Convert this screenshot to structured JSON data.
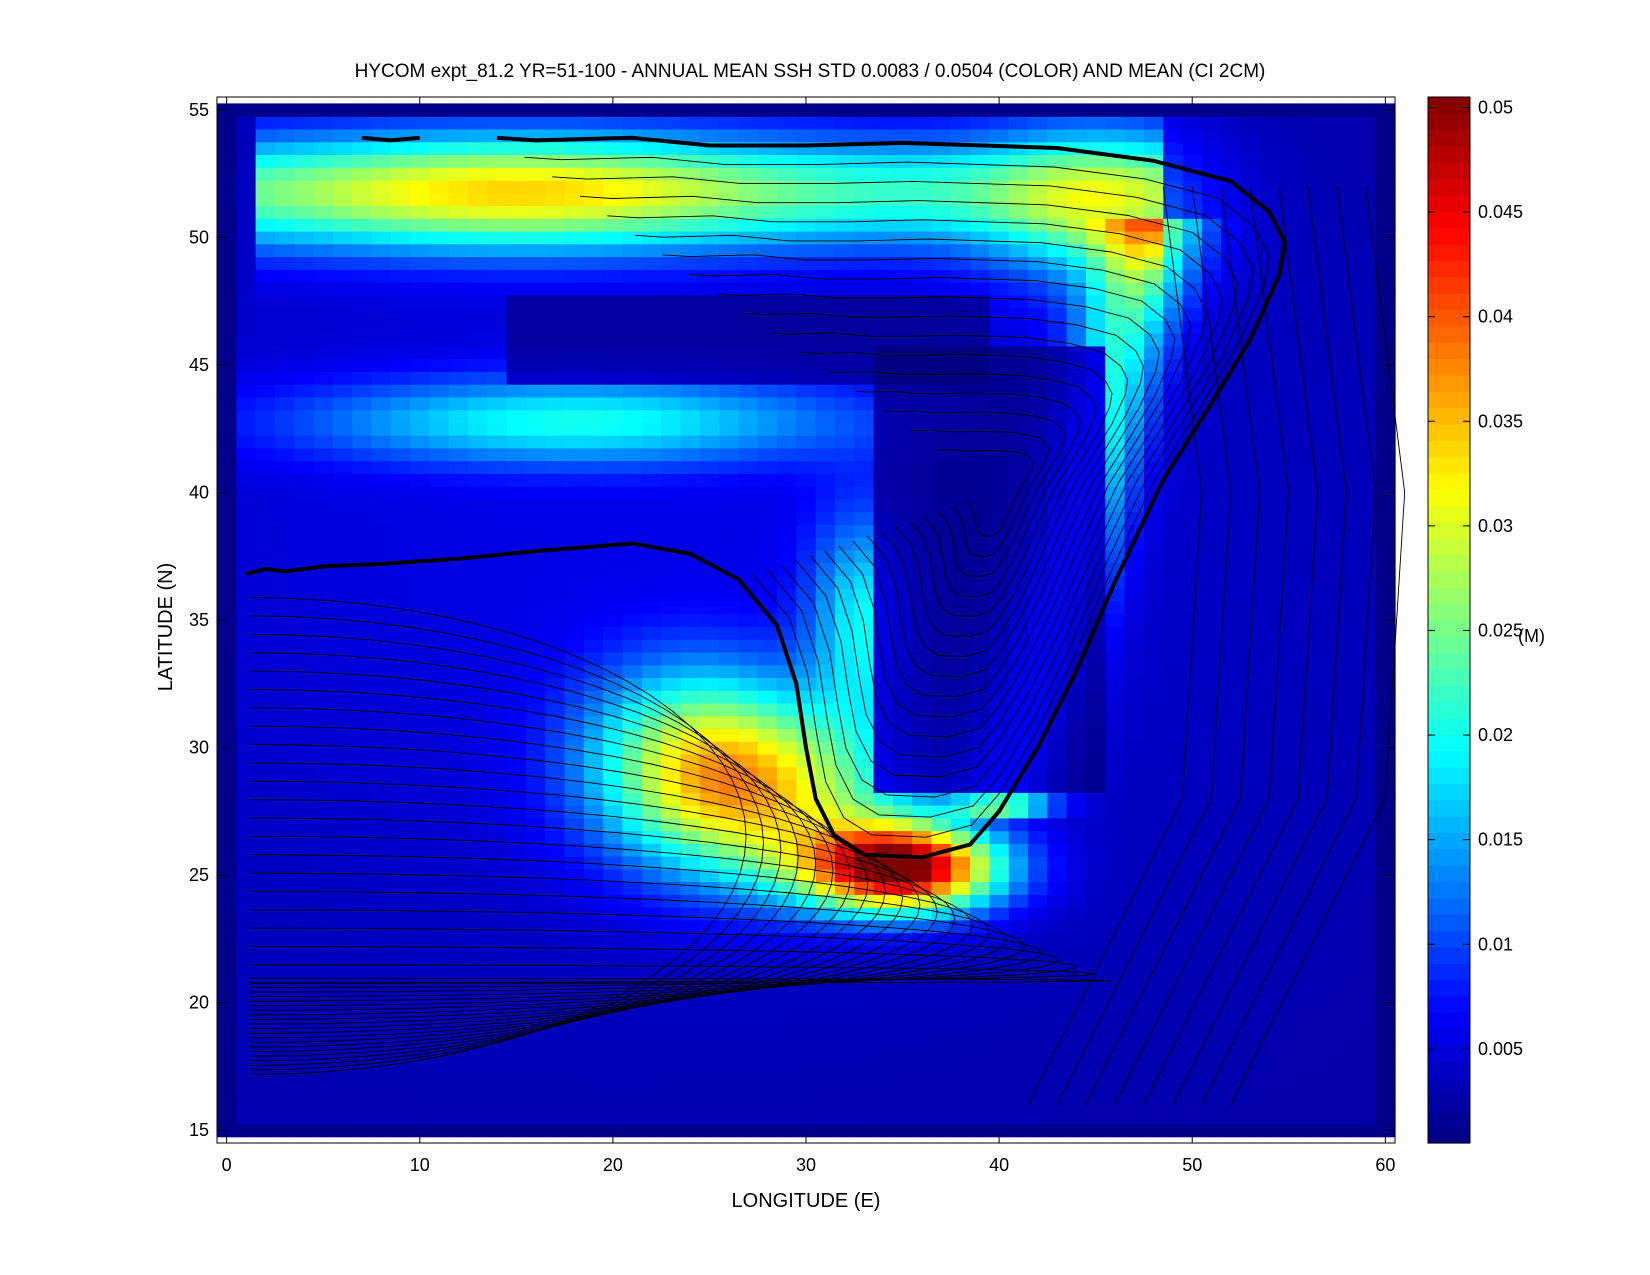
{
  "chart_data": {
    "type": "heatmap",
    "title": "HYCOM expt_81.2 YR=51-100 - ANNUAL MEAN SSH STD 0.0083 / 0.0504 (COLOR) AND MEAN (CI 2CM)",
    "xlabel": "LONGITUDE (E)",
    "ylabel": "LATITUDE (N)",
    "xlim": [
      -0.5,
      60.5
    ],
    "ylim": [
      14.5,
      55.5
    ],
    "xticks": [
      "0",
      "10",
      "20",
      "30",
      "40",
      "50",
      "60"
    ],
    "yticks": [
      "15",
      "20",
      "25",
      "30",
      "35",
      "40",
      "45",
      "50",
      "55"
    ],
    "colorbar": {
      "label": "(M)",
      "range": [
        0.0005,
        0.0505
      ],
      "ticks": [
        "0.005",
        "0.01",
        "0.015",
        "0.02",
        "0.025",
        "0.03",
        "0.035",
        "0.04",
        "0.045",
        "0.05"
      ],
      "colormap": "jet"
    },
    "std_summary": {
      "mean": 0.0083,
      "max": 0.0504
    },
    "contour_interval": "2CM",
    "std_features": [
      {
        "region": "northern boundary jet",
        "lon_range": [
          1,
          50
        ],
        "lat_range": [
          47.5,
          53.5
        ],
        "peak_value": 0.04
      },
      {
        "region": "separated jet / western boundary",
        "lon_range": [
          20,
          42
        ],
        "lat_range": [
          23.5,
          33
        ],
        "peak_value": 0.05
      },
      {
        "region": "eastern boundary current",
        "lon_range": [
          40,
          49
        ],
        "lat_range": [
          27,
          51
        ],
        "peak_value": 0.025
      },
      {
        "region": "mid-latitude jet",
        "lon_range": [
          5,
          36
        ],
        "lat_range": [
          40,
          45
        ],
        "peak_value": 0.02
      }
    ],
    "mean_zero_contour": [
      [
        1,
        36.8
      ],
      [
        2,
        37
      ],
      [
        3,
        36.9
      ],
      [
        5,
        37.1
      ],
      [
        8,
        37.2
      ],
      [
        12,
        37.4
      ],
      [
        16,
        37.7
      ],
      [
        21,
        38
      ],
      [
        24,
        37.6
      ],
      [
        26.5,
        36.6
      ],
      [
        28.5,
        34.8
      ],
      [
        29.5,
        32.5
      ],
      [
        30,
        30
      ],
      [
        30.5,
        28
      ],
      [
        31.5,
        26.5
      ],
      [
        33,
        25.8
      ],
      [
        36,
        25.7
      ],
      [
        38.5,
        26.2
      ],
      [
        40,
        27.5
      ],
      [
        42,
        30
      ],
      [
        44,
        33
      ],
      [
        46,
        36.5
      ],
      [
        48.5,
        40.5
      ],
      [
        51,
        43.5
      ],
      [
        53,
        46
      ],
      [
        54.5,
        48.5
      ],
      [
        54.8,
        49.8
      ],
      [
        54,
        51
      ],
      [
        52,
        52.2
      ],
      [
        48,
        53
      ],
      [
        43,
        53.5
      ],
      [
        35,
        53.7
      ],
      [
        30,
        53.6
      ],
      [
        25,
        53.6
      ],
      [
        21,
        53.9
      ],
      [
        16,
        53.8
      ],
      [
        14,
        53.9
      ]
    ]
  }
}
